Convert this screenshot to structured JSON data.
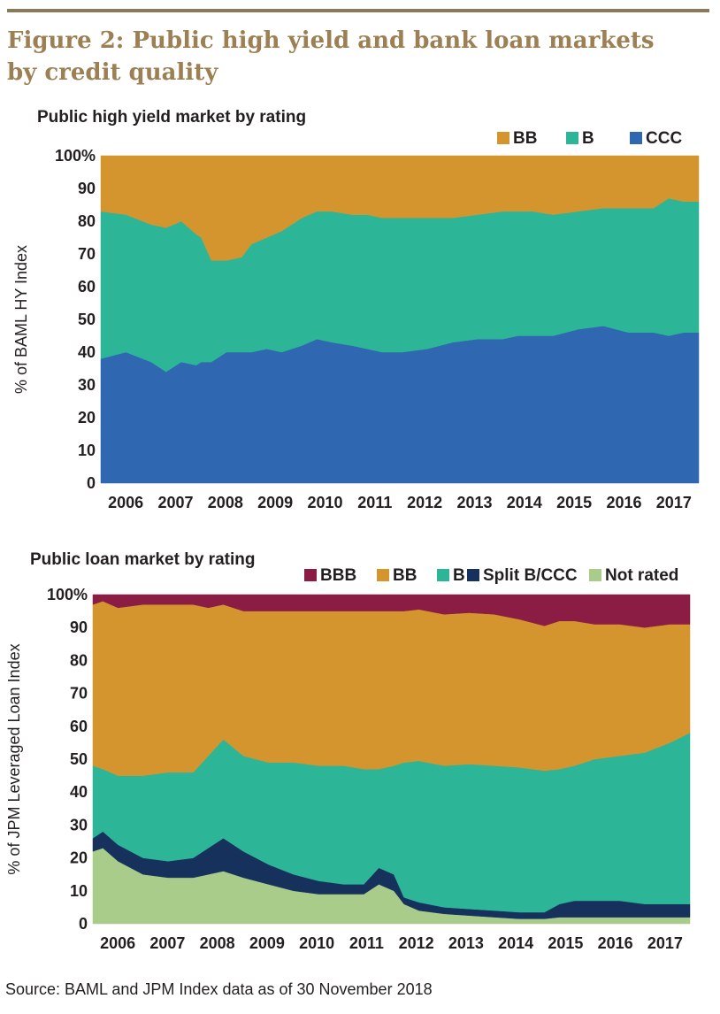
{
  "figure_title": "Figure 2: Public high yield and bank loan markets by credit quality",
  "source": "Source: BAML and JPM Index data as of 30 November 2018",
  "colors": {
    "BBB": "#8b1c44",
    "BB": "#d4952f",
    "B": "#2cb597",
    "Split B/CCC": "#16325c",
    "CCC": "#2f67b1",
    "Not rated": "#a9cc8a"
  },
  "chart_data": [
    {
      "type": "area",
      "stacked": true,
      "title": "Public high yield market by rating",
      "ylabel": "% of BAML HY Index",
      "ylim": [
        0,
        100
      ],
      "yticks": [
        "0",
        "10",
        "20",
        "30",
        "40",
        "50",
        "60",
        "70",
        "80",
        "90",
        "100%"
      ],
      "xticks": [
        "2006",
        "2007",
        "2008",
        "2009",
        "2010",
        "2011",
        "2012",
        "2013",
        "2014",
        "2015",
        "2016",
        "2017"
      ],
      "legend": [
        "BB",
        "B",
        "CCC"
      ],
      "legend_position": "top-right",
      "x": [
        2006.0,
        2006.5,
        2007.0,
        2007.3,
        2007.6,
        2007.9,
        2008.0,
        2008.2,
        2008.5,
        2008.8,
        2009.0,
        2009.3,
        2009.6,
        2010.0,
        2010.3,
        2010.6,
        2011.0,
        2011.3,
        2011.6,
        2012.0,
        2012.5,
        2013.0,
        2013.5,
        2014.0,
        2014.3,
        2014.6,
        2015.0,
        2015.5,
        2016.0,
        2016.5,
        2017.0,
        2017.3,
        2017.6,
        2017.9
      ],
      "series": [
        {
          "name": "CCC",
          "values": [
            38,
            40,
            37,
            34,
            37,
            36,
            37,
            37,
            40,
            40,
            40,
            41,
            40,
            42,
            44,
            43,
            42,
            41,
            40,
            40,
            41,
            43,
            44,
            44,
            45,
            45,
            45,
            47,
            48,
            46,
            46,
            45,
            46,
            46
          ]
        },
        {
          "name": "B",
          "values": [
            45,
            42,
            42,
            44,
            43,
            40,
            38,
            31,
            28,
            29,
            33,
            34,
            37,
            39,
            39,
            40,
            40,
            41,
            41,
            41,
            40,
            38,
            38,
            39,
            38,
            38,
            37,
            36,
            36,
            38,
            38,
            42,
            40,
            40
          ]
        },
        {
          "name": "BB",
          "values": [
            17,
            18,
            21,
            22,
            20,
            24,
            25,
            32,
            32,
            31,
            27,
            25,
            23,
            19,
            17,
            17,
            18,
            18,
            19,
            19,
            19,
            19,
            18,
            17,
            17,
            17,
            18,
            17,
            16,
            16,
            16,
            13,
            14,
            14
          ]
        }
      ]
    },
    {
      "type": "area",
      "stacked": true,
      "title": "Public loan market by rating",
      "ylabel": "% of JPM Leveraged Loan Index",
      "ylim": [
        0,
        100
      ],
      "yticks": [
        "0",
        "10",
        "20",
        "30",
        "40",
        "50",
        "60",
        "70",
        "80",
        "90",
        "100%"
      ],
      "xticks": [
        "2006",
        "2007",
        "2008",
        "2009",
        "2010",
        "2011",
        "2012",
        "2013",
        "2014",
        "2015",
        "2016",
        "2017"
      ],
      "legend": [
        "BBB",
        "BB",
        "B",
        "Split B/CCC",
        "Not rated"
      ],
      "legend_position": "top-right",
      "x": [
        2006.0,
        2006.2,
        2006.5,
        2007.0,
        2007.5,
        2008.0,
        2008.3,
        2008.6,
        2009.0,
        2009.5,
        2010.0,
        2010.5,
        2011.0,
        2011.4,
        2011.7,
        2012.0,
        2012.2,
        2012.5,
        2013.0,
        2013.5,
        2014.0,
        2014.5,
        2015.0,
        2015.3,
        2015.6,
        2016.0,
        2016.5,
        2017.0,
        2017.5,
        2017.9
      ],
      "series": [
        {
          "name": "Not rated",
          "values": [
            22,
            23,
            19,
            15,
            14,
            14,
            15,
            16,
            14,
            12,
            10,
            9,
            9,
            9,
            12,
            10,
            6,
            4,
            3,
            2.5,
            2,
            1.5,
            1.5,
            2,
            2,
            2,
            2,
            2,
            2,
            2
          ]
        },
        {
          "name": "Split B/CCC",
          "values": [
            4,
            5,
            5,
            5,
            5,
            6,
            8,
            10,
            8,
            6,
            5,
            4,
            3,
            3,
            5,
            5,
            2,
            2.5,
            2,
            2,
            2,
            2,
            2,
            4,
            5,
            5,
            5,
            4,
            4,
            4
          ]
        },
        {
          "name": "B",
          "values": [
            22,
            19,
            21,
            25,
            27,
            26,
            28,
            30,
            29,
            31,
            34,
            35,
            36,
            35,
            30,
            33,
            41,
            43,
            43,
            44,
            44,
            44,
            43,
            41,
            41,
            43,
            44,
            46,
            49,
            52
          ]
        },
        {
          "name": "BB",
          "values": [
            49,
            51,
            51,
            52,
            51,
            51,
            45,
            41,
            44,
            46,
            46,
            47,
            47,
            48,
            48,
            47,
            46,
            46,
            46,
            46,
            46,
            45,
            44,
            45,
            44,
            41,
            40,
            38,
            36,
            33
          ]
        },
        {
          "name": "BBB",
          "values": [
            3,
            2,
            4,
            3,
            3,
            3,
            4,
            3,
            5,
            5,
            5,
            5,
            5,
            5,
            5,
            5,
            5,
            4.5,
            6,
            5.5,
            6,
            7.5,
            9.5,
            8,
            8,
            9,
            9,
            10,
            9,
            9
          ]
        }
      ]
    }
  ]
}
